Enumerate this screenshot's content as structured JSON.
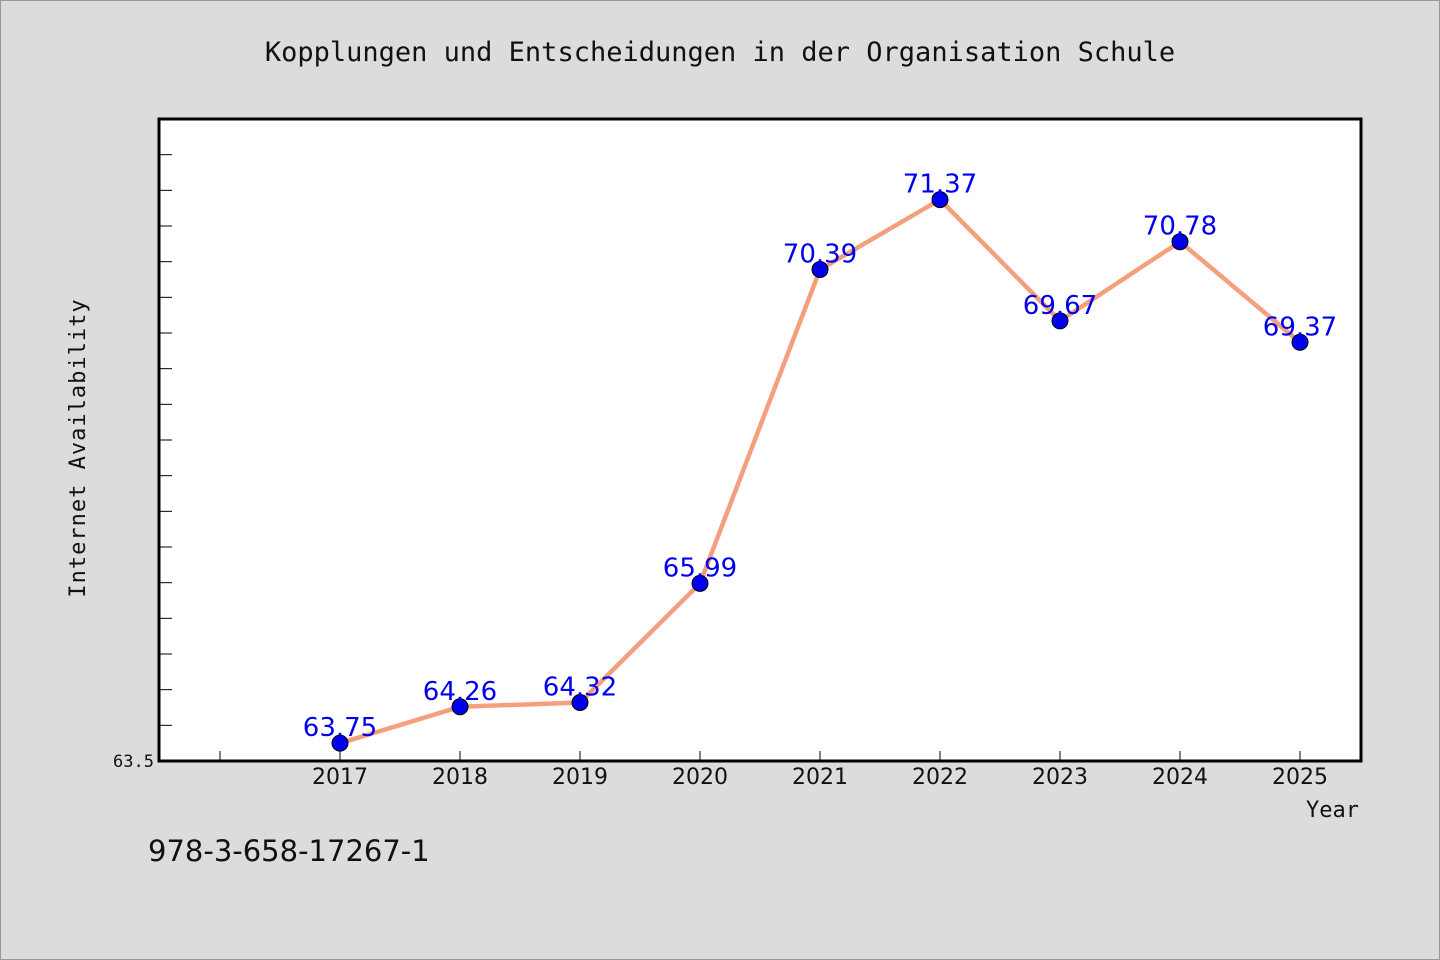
{
  "chart_data": {
    "type": "line",
    "title": "Kopplungen und Entscheidungen in der Organisation Schule",
    "xlabel": "Year",
    "ylabel": "Internet Availability",
    "x": [
      "2017",
      "2018",
      "2019",
      "2020",
      "2021",
      "2022",
      "2023",
      "2024",
      "2025"
    ],
    "series": [
      {
        "values": [
          63.75,
          64.26,
          64.32,
          65.99,
          70.39,
          71.37,
          69.67,
          70.78,
          69.37
        ],
        "data_labels": [
          "63.75",
          "64.26",
          "64.32",
          "65.99",
          "70.39",
          "71.37",
          "69.67",
          "70.78",
          "69.37"
        ]
      }
    ],
    "ylim": [
      63.5,
      72.5
    ],
    "y_tick_labels": [
      "63.5"
    ],
    "y_minor_tick_step": 0.5,
    "grid": false,
    "legend": "none",
    "colors": {
      "line": "#f4a07f",
      "marker": "#0000ee",
      "data_label": "#0000ee",
      "background": "#dcdcdc",
      "plot_background": "#ffffff"
    }
  },
  "footer": {
    "isbn": "978-3-658-17267-1"
  }
}
